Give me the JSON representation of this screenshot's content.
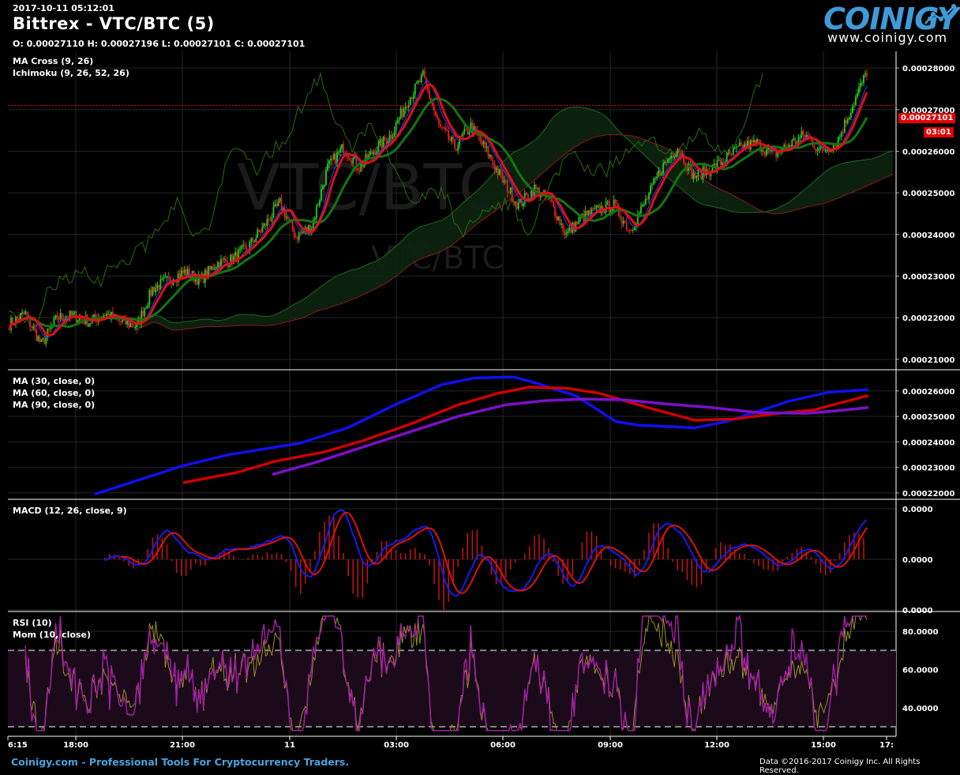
{
  "header": {
    "timestamp": "2017-10-11 05:12:01",
    "title": "Bittrex - VTC/BTC (5)",
    "ohlc": "O: 0.00027110 H: 0.00027196 L: 0.00027101 C: 0.00027101"
  },
  "logo": {
    "name": "COINIGY",
    "url": "www.coinigy.com",
    "icon": "chart-line-icon"
  },
  "footer": {
    "left": "Coinigy.com - Professional Tools For Cryptocurrency Traders.",
    "right": "Data ©2016-2017 Coinigy Inc. All Rights Reserved."
  },
  "colors": {
    "background": "#000000",
    "up": "#22cc22",
    "down": "#e02020",
    "ma_fast": "#dd1111",
    "ma_slow": "#117711",
    "ma30": "#1010ee",
    "ma60": "#cc0000",
    "ma90": "#7a10c8",
    "rsi": "#a020a0",
    "mom": "#9a9020",
    "accent": "#3f9ad8"
  },
  "watermark": {
    "pair": "VTC/BTC"
  },
  "chart_data": [
    {
      "type": "candlestick",
      "labels": [
        "MA Cross (9, 26)",
        "Ichimoku (9, 26, 52, 26)"
      ],
      "yticks": [
        "0.00028000",
        "0.00027000",
        "0.00026000",
        "0.00025000",
        "0.00024000",
        "0.00023000",
        "0.00022000",
        "0.00021000"
      ],
      "ylim": [
        0.0002075,
        0.000284
      ],
      "last_price": "0.00027101",
      "countdown": "03:01",
      "x_ticks": [
        "6:15",
        "18:00",
        "21:00",
        "11",
        "03:00",
        "06:00",
        "09:00",
        "12:00",
        "15:00",
        "17:"
      ],
      "anchors": [
        [
          0,
          0.0002185
        ],
        [
          10,
          0.000221
        ],
        [
          20,
          0.0002135
        ],
        [
          30,
          0.00022
        ],
        [
          40,
          0.0002205
        ],
        [
          50,
          0.000219
        ],
        [
          60,
          0.000221
        ],
        [
          70,
          0.000219
        ],
        [
          80,
          0.000218
        ],
        [
          90,
          0.000227
        ],
        [
          100,
          0.000229
        ],
        [
          110,
          0.000231
        ],
        [
          120,
          0.000229
        ],
        [
          130,
          0.000233
        ],
        [
          140,
          0.000234
        ],
        [
          150,
          0.000237
        ],
        [
          160,
          0.000242
        ],
        [
          170,
          0.0002475
        ],
        [
          180,
          0.0002395
        ],
        [
          190,
          0.000242
        ],
        [
          200,
          0.000256
        ],
        [
          210,
          0.000261
        ],
        [
          220,
          0.000256
        ],
        [
          230,
          0.0002605
        ],
        [
          240,
          0.000264
        ],
        [
          250,
          0.000272
        ],
        [
          260,
          0.000278
        ],
        [
          270,
          0.000266
        ],
        [
          280,
          0.000261
        ],
        [
          290,
          0.000266
        ],
        [
          300,
          0.00026
        ],
        [
          310,
          0.000253
        ],
        [
          320,
          0.000247
        ],
        [
          330,
          0.000251
        ],
        [
          340,
          0.000248
        ],
        [
          350,
          0.00024
        ],
        [
          360,
          0.000244
        ],
        [
          370,
          0.000246
        ],
        [
          380,
          0.000247
        ],
        [
          390,
          0.000241
        ],
        [
          400,
          0.000248
        ],
        [
          410,
          0.000256
        ],
        [
          420,
          0.000261
        ],
        [
          430,
          0.000254
        ],
        [
          440,
          0.0002555
        ],
        [
          450,
          0.000258
        ],
        [
          460,
          0.000261
        ],
        [
          470,
          0.000262
        ],
        [
          480,
          0.000259
        ],
        [
          490,
          0.0002615
        ],
        [
          500,
          0.000264
        ],
        [
          510,
          0.00026
        ],
        [
          520,
          0.000262
        ],
        [
          530,
          0.000271
        ]
      ]
    },
    {
      "type": "line",
      "labels": [
        "MA (30, close, 0)",
        "MA (60, close, 0)",
        "MA (90, close, 0)"
      ],
      "yticks": [
        "0.00026000",
        "0.00025000",
        "0.00024000",
        "0.00023000",
        "0.00022000"
      ],
      "ylim": [
        0.0002175,
        0.000268
      ],
      "series": [
        {
          "values": [
            [
              120,
              0.0002195
            ],
            [
              170,
              0.0002245
            ],
            [
              230,
              0.0002305
            ],
            [
              290,
              0.000235
            ],
            [
              380,
              0.0002395
            ],
            [
              440,
              0.0002455
            ],
            [
              500,
              0.0002545
            ],
            [
              560,
              0.0002625
            ],
            [
              600,
              0.000265
            ],
            [
              650,
              0.0002655
            ],
            [
              680,
              0.000263
            ],
            [
              730,
              0.000258
            ],
            [
              780,
              0.000248
            ],
            [
              810,
              0.0002465
            ],
            [
              850,
              0.000246
            ],
            [
              880,
              0.0002455
            ],
            [
              920,
              0.000248
            ],
            [
              960,
              0.000252
            ],
            [
              1000,
              0.000256
            ],
            [
              1050,
              0.0002595
            ],
            [
              1100,
              0.0002605
            ]
          ]
        },
        {
          "values": [
            [
              232,
              0.000224
            ],
            [
              300,
              0.000228
            ],
            [
              350,
              0.0002325
            ],
            [
              410,
              0.000236
            ],
            [
              460,
              0.0002405
            ],
            [
              520,
              0.000247
            ],
            [
              580,
              0.0002545
            ],
            [
              630,
              0.000259
            ],
            [
              670,
              0.0002615
            ],
            [
              720,
              0.000261
            ],
            [
              760,
              0.000259
            ],
            [
              820,
              0.0002535
            ],
            [
              880,
              0.0002485
            ],
            [
              930,
              0.000249
            ],
            [
              980,
              0.000251
            ],
            [
              1030,
              0.0002525
            ],
            [
              1100,
              0.0002582
            ]
          ]
        },
        {
          "values": [
            [
              345,
              0.0002272
            ],
            [
              400,
              0.000232
            ],
            [
              460,
              0.000238
            ],
            [
              520,
              0.000244
            ],
            [
              580,
              0.00025
            ],
            [
              640,
              0.0002545
            ],
            [
              690,
              0.0002562
            ],
            [
              740,
              0.0002568
            ],
            [
              790,
              0.0002565
            ],
            [
              840,
              0.000255
            ],
            [
              900,
              0.0002535
            ],
            [
              960,
              0.0002515
            ],
            [
              1020,
              0.0002512
            ],
            [
              1060,
              0.0002522
            ],
            [
              1100,
              0.0002535
            ]
          ]
        }
      ]
    },
    {
      "type": "macd",
      "labels": [
        "MACD (12, 26, close, 9)"
      ],
      "yticks": [
        "0.0000",
        "0.0000",
        "0.0000"
      ],
      "ylim": [
        -1.0,
        1.0
      ]
    },
    {
      "type": "line",
      "labels": [
        "RSI (10)",
        "Mom (10, close)"
      ],
      "yticks": [
        "80.0000",
        "60.0000",
        "40.0000"
      ],
      "ylim": [
        25,
        90
      ],
      "bands": [
        70,
        30
      ]
    }
  ]
}
